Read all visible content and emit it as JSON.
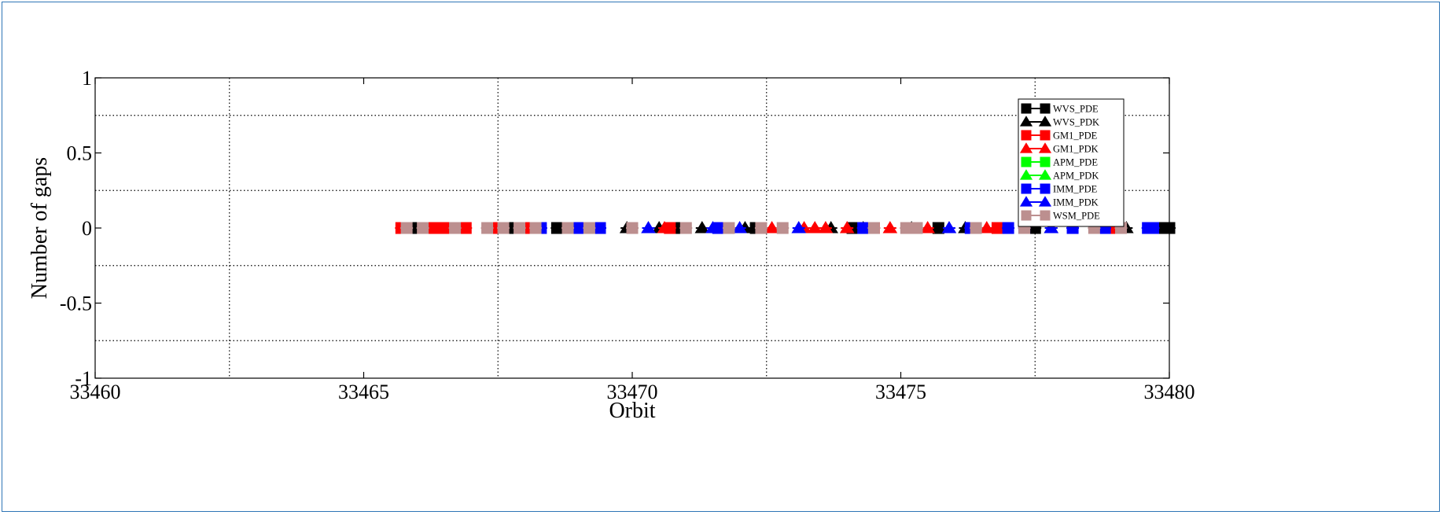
{
  "chart_data": {
    "type": "scatter",
    "title": "",
    "xlabel": "Orbit",
    "ylabel": "Number of gaps",
    "xlim": [
      33460,
      33480
    ],
    "ylim": [
      -1,
      1
    ],
    "x_ticks": [
      33460,
      33465,
      33470,
      33475,
      33480
    ],
    "y_ticks": [
      -1,
      -0.5,
      0,
      0.5,
      1
    ],
    "x_tick_labels": [
      "33460",
      "33465",
      "33470",
      "33475",
      "33480"
    ],
    "y_tick_labels": [
      "-1",
      "-0.5",
      "0",
      "0.5",
      "1"
    ],
    "grid": true,
    "legend_position": "top-right",
    "series": [
      {
        "name": "WVS_PDE",
        "marker": "square",
        "color": "#000000",
        "x": [
          33465.9,
          33467.8,
          33468.6,
          33469.3,
          33470.9,
          33472.3,
          33474.1,
          33475.7,
          33477.5,
          33479.8,
          33480.0
        ],
        "y": [
          0,
          0,
          0,
          0,
          0,
          0,
          0,
          0,
          0,
          0,
          0
        ]
      },
      {
        "name": "WVS_PDK",
        "marker": "triangle",
        "color": "#000000",
        "x": [
          33469.9,
          33470.5,
          33471.3,
          33472.1,
          33473.7,
          33474.3,
          33475.2,
          33476.2,
          33477.8,
          33479.2
        ],
        "y": [
          0,
          0,
          0,
          0,
          0,
          0,
          0,
          0,
          0,
          0
        ]
      },
      {
        "name": "GM1_PDE",
        "marker": "square",
        "color": "#ff0000",
        "x": [
          33465.7,
          33466.3,
          33466.5,
          33466.9,
          33467.5,
          33468.1,
          33470.7,
          33474.5,
          33476.8,
          33478.9
        ],
        "y": [
          0,
          0,
          0,
          0,
          0,
          0,
          0,
          0,
          0,
          0
        ]
      },
      {
        "name": "GM1_PDK",
        "marker": "triangle",
        "color": "#ff0000",
        "x": [
          33470.6,
          33472.6,
          33473.2,
          33473.4,
          33473.6,
          33474.0,
          33474.8,
          33475.5,
          33476.6
        ],
        "y": [
          0,
          0,
          0,
          0,
          0,
          0,
          0,
          0,
          0
        ]
      },
      {
        "name": "APM_PDE",
        "marker": "square",
        "color": "#00ff00",
        "x": [],
        "y": []
      },
      {
        "name": "APM_PDK",
        "marker": "triangle",
        "color": "#00ff00",
        "x": [],
        "y": []
      },
      {
        "name": "IMM_PDE",
        "marker": "square",
        "color": "#0000ff",
        "x": [
          33468.3,
          33469.0,
          33469.1,
          33469.4,
          33471.6,
          33474.3,
          33476.3,
          33477.0,
          33477.3,
          33478.2,
          33478.8,
          33479.6,
          33479.7
        ],
        "y": [
          0,
          0,
          0,
          0,
          0,
          0,
          0,
          0,
          0,
          0,
          0,
          0,
          0
        ]
      },
      {
        "name": "IMM_PDK",
        "marker": "triangle",
        "color": "#0000ff",
        "x": [
          33470.3,
          33471.5,
          33472.0,
          33473.1,
          33475.9,
          33477.8
        ],
        "y": [
          0,
          0,
          0,
          0,
          0,
          0
        ]
      },
      {
        "name": "WSM_PDE",
        "marker": "square",
        "color": "#bc8f8f",
        "x": [
          33465.8,
          33466.1,
          33466.7,
          33467.3,
          33467.6,
          33467.9,
          33468.2,
          33468.8,
          33469.2,
          33470.0,
          33471.0,
          33471.8,
          33472.4,
          33472.8,
          33474.5,
          33475.1,
          33475.3,
          33476.4,
          33477.3,
          33478.6,
          33479.1
        ],
        "y": [
          0,
          0,
          0,
          0,
          0,
          0,
          0,
          0,
          0,
          0,
          0,
          0,
          0,
          0,
          0,
          0,
          0,
          0,
          0,
          0,
          0
        ]
      }
    ]
  }
}
